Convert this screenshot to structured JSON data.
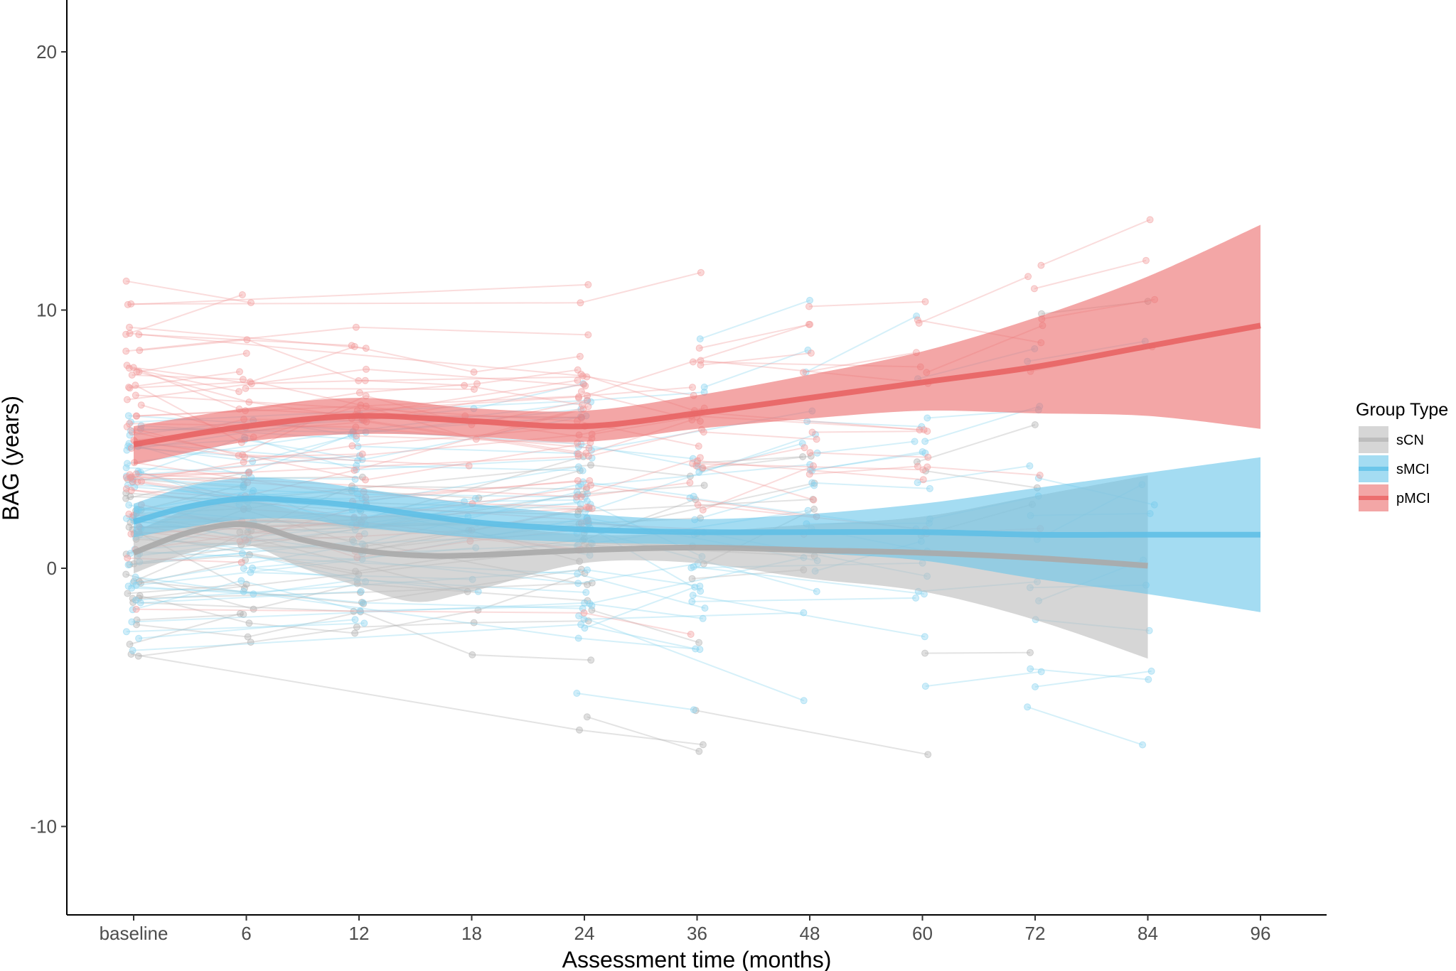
{
  "chart_data": {
    "type": "line",
    "title": "",
    "xlabel": "Assessment time (months)",
    "ylabel": "BAG (years)",
    "xlim": [
      -6,
      105
    ],
    "ylim": [
      -13.3,
      21.9
    ],
    "x_ticks": [
      {
        "value": 0,
        "label": "baseline"
      },
      {
        "value": 6,
        "label": "6"
      },
      {
        "value": 12,
        "label": "12"
      },
      {
        "value": 18,
        "label": "18"
      },
      {
        "value": 24,
        "label": "24"
      },
      {
        "value": 36,
        "label": "36"
      },
      {
        "value": 48,
        "label": "48"
      },
      {
        "value": 60,
        "label": "60"
      },
      {
        "value": 72,
        "label": "72"
      },
      {
        "value": 84,
        "label": "84"
      },
      {
        "value": 96,
        "label": "96"
      }
    ],
    "y_ticks": [
      {
        "value": 20,
        "label": "20"
      },
      {
        "value": 10,
        "label": "10"
      },
      {
        "value": 0,
        "label": "0"
      },
      {
        "value": -10,
        "label": "-10"
      }
    ],
    "legend": {
      "title": "Group Type",
      "position": "right",
      "entries": [
        {
          "name": "sCN",
          "color": "#bdbdbd"
        },
        {
          "name": "sMCI",
          "color": "#6cc6ea"
        },
        {
          "name": "pMCI",
          "color": "#ec6f6f"
        }
      ]
    },
    "series": [
      {
        "name": "sCN",
        "line_color": "#aaaaaa",
        "band_color": "#bdbdbd",
        "point_color": "#b0b0b0",
        "trend": [
          {
            "x": 0,
            "y": 0.6,
            "lo": -0.2,
            "hi": 1.4
          },
          {
            "x": 3,
            "y": 1.4,
            "lo": 0.6,
            "hi": 2.3
          },
          {
            "x": 6,
            "y": 1.7,
            "lo": 0.9,
            "hi": 2.6
          },
          {
            "x": 9,
            "y": 1.1,
            "lo": 0.0,
            "hi": 2.2
          },
          {
            "x": 12,
            "y": 0.7,
            "lo": -0.7,
            "hi": 2.0
          },
          {
            "x": 15,
            "y": 0.5,
            "lo": -1.3,
            "hi": 2.1
          },
          {
            "x": 18,
            "y": 0.5,
            "lo": -0.9,
            "hi": 1.8
          },
          {
            "x": 24,
            "y": 0.7,
            "lo": 0.2,
            "hi": 1.3
          },
          {
            "x": 36,
            "y": 0.8,
            "lo": 0.2,
            "hi": 1.4
          },
          {
            "x": 48,
            "y": 0.7,
            "lo": -0.4,
            "hi": 1.7
          },
          {
            "x": 60,
            "y": 0.6,
            "lo": -0.9,
            "hi": 2.0
          },
          {
            "x": 72,
            "y": 0.4,
            "lo": -2.0,
            "hi": 2.8
          },
          {
            "x": 84,
            "y": 0.1,
            "lo": -3.5,
            "hi": 3.6
          }
        ]
      },
      {
        "name": "sMCI",
        "line_color": "#5fbfe6",
        "band_color": "#6cc6ea",
        "point_color": "#87d3ef",
        "trend": [
          {
            "x": 0,
            "y": 1.8,
            "lo": 1.2,
            "hi": 2.5
          },
          {
            "x": 3,
            "y": 2.4,
            "lo": 1.6,
            "hi": 3.2
          },
          {
            "x": 6,
            "y": 2.7,
            "lo": 1.9,
            "hi": 3.5
          },
          {
            "x": 9,
            "y": 2.6,
            "lo": 1.9,
            "hi": 3.4
          },
          {
            "x": 12,
            "y": 2.4,
            "lo": 1.6,
            "hi": 3.1
          },
          {
            "x": 18,
            "y": 1.8,
            "lo": 1.2,
            "hi": 2.5
          },
          {
            "x": 24,
            "y": 1.5,
            "lo": 1.0,
            "hi": 2.1
          },
          {
            "x": 36,
            "y": 1.4,
            "lo": 0.9,
            "hi": 1.9
          },
          {
            "x": 48,
            "y": 1.4,
            "lo": 0.6,
            "hi": 2.1
          },
          {
            "x": 60,
            "y": 1.4,
            "lo": 0.3,
            "hi": 2.5
          },
          {
            "x": 72,
            "y": 1.3,
            "lo": -0.4,
            "hi": 3.1
          },
          {
            "x": 84,
            "y": 1.3,
            "lo": -1.0,
            "hi": 3.7
          },
          {
            "x": 96,
            "y": 1.3,
            "lo": -1.7,
            "hi": 4.3
          }
        ]
      },
      {
        "name": "pMCI",
        "line_color": "#e86464",
        "band_color": "#ec6f6f",
        "point_color": "#f29a9a",
        "trend": [
          {
            "x": 0,
            "y": 4.8,
            "lo": 4.0,
            "hi": 5.5
          },
          {
            "x": 6,
            "y": 5.5,
            "lo": 4.9,
            "hi": 6.2
          },
          {
            "x": 12,
            "y": 5.9,
            "lo": 5.2,
            "hi": 6.6
          },
          {
            "x": 18,
            "y": 5.7,
            "lo": 5.1,
            "hi": 6.2
          },
          {
            "x": 24,
            "y": 5.5,
            "lo": 4.9,
            "hi": 6.1
          },
          {
            "x": 36,
            "y": 6.0,
            "lo": 5.4,
            "hi": 6.7
          },
          {
            "x": 48,
            "y": 6.6,
            "lo": 5.8,
            "hi": 7.5
          },
          {
            "x": 60,
            "y": 7.2,
            "lo": 6.1,
            "hi": 8.4
          },
          {
            "x": 72,
            "y": 7.8,
            "lo": 6.0,
            "hi": 9.7
          },
          {
            "x": 84,
            "y": 8.6,
            "lo": 5.9,
            "hi": 11.3
          },
          {
            "x": 96,
            "y": 9.4,
            "lo": 5.4,
            "hi": 13.3
          }
        ]
      }
    ]
  }
}
